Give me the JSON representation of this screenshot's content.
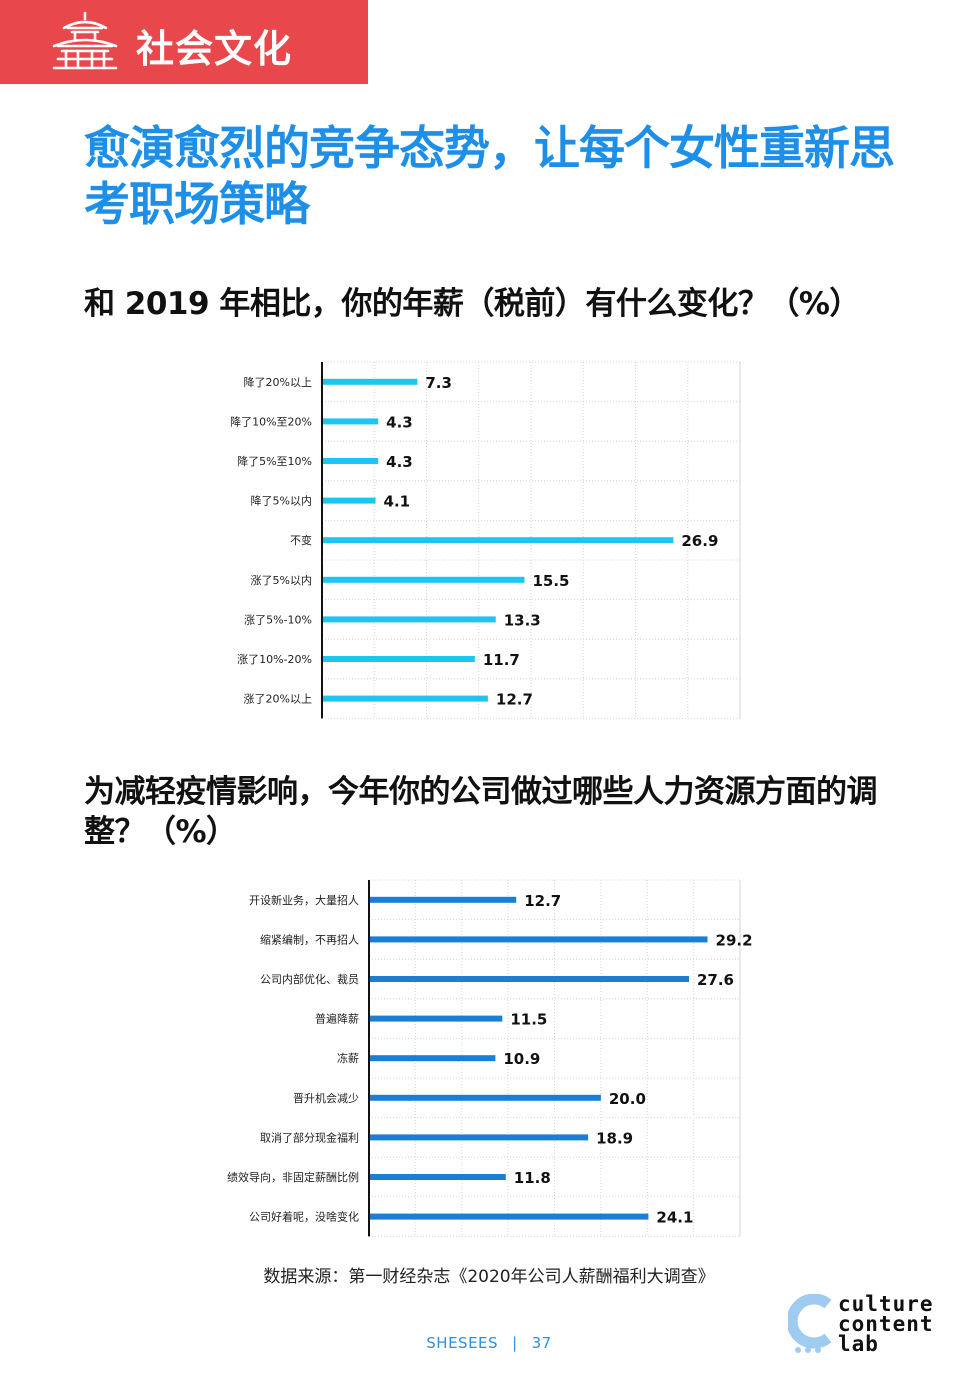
{
  "header": {
    "section_label": "社会文化",
    "section_color": "#e8474c"
  },
  "page": {
    "title": "愈演愈烈的竞争态势，让每个女性重新思考职场策略"
  },
  "questions": [
    {
      "title": "和 2019 年相比，你的年薪（税前）有什么变化？（%）"
    },
    {
      "title": "为减轻疫情影响，今年你的公司做过哪些人力资源方面的调整？（%）"
    }
  ],
  "chart_data": [
    {
      "type": "bar",
      "orientation": "horizontal",
      "categories": [
        "降了20%以上",
        "降了10%至20%",
        "降了5%至10%",
        "降了5%以内",
        "不变",
        "涨了5%以内",
        "涨了5%-10%",
        "涨了10%-20%",
        "涨了20%以上"
      ],
      "values": [
        7.3,
        4.3,
        4.3,
        4.1,
        26.9,
        15.5,
        13.3,
        11.7,
        12.7
      ],
      "labels": [
        "7.3",
        "4.3",
        "4.3",
        "4.1",
        "26.9",
        "15.5",
        "13.3",
        "11.7",
        "12.7"
      ],
      "xlim": [
        0,
        32
      ],
      "grid": true,
      "color": "#1ec4f2"
    },
    {
      "type": "bar",
      "orientation": "horizontal",
      "categories": [
        "开设新业务，大量招人",
        "缩紧编制，不再招人",
        "公司内部优化、裁员",
        "普遍降薪",
        "冻薪",
        "晋升机会减少",
        "取消了部分现金福利",
        "绩效导向，非固定薪酬比例",
        "公司好着呢，没啥变化"
      ],
      "values": [
        12.7,
        29.2,
        27.6,
        11.5,
        10.9,
        20.0,
        18.9,
        11.8,
        24.1
      ],
      "labels": [
        "12.7",
        "29.2",
        "27.6",
        "11.5",
        "10.9",
        "20.0",
        "18.9",
        "11.8",
        "24.1"
      ],
      "xlim": [
        0,
        32
      ],
      "grid": true,
      "color": "#1a7fd4"
    }
  ],
  "source": {
    "text": "数据来源：第一财经杂志《2020年公司人薪酬福利大调查》"
  },
  "footer": {
    "brand": "SHESEES",
    "separator": "|",
    "page_number": "37"
  },
  "logo": {
    "line1": "culture",
    "line2": "content",
    "line3": "lab"
  }
}
